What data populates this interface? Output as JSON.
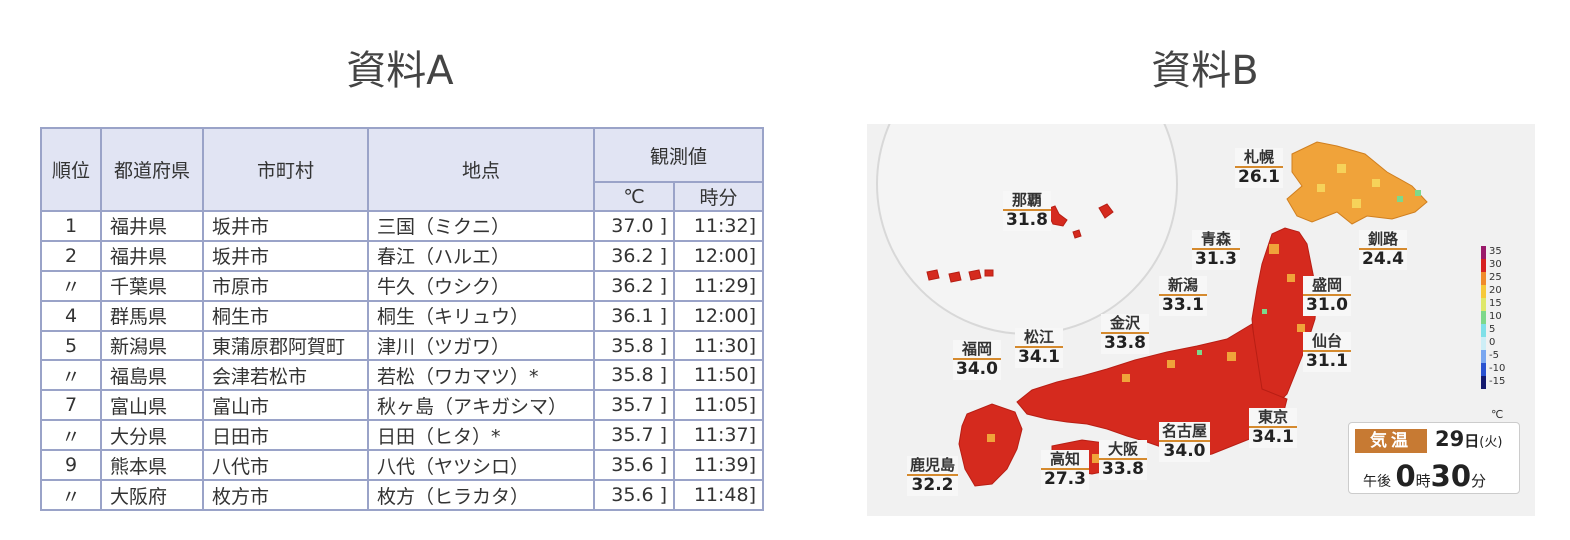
{
  "headings": {
    "a": "資料A",
    "b": "資料B"
  },
  "table": {
    "headers": {
      "rank": "順位",
      "pref": "都道府県",
      "city": "市町村",
      "site": "地点",
      "obs": "観測値",
      "unit_c": "℃",
      "unit_time": "時分"
    },
    "rows": [
      {
        "rank": "1",
        "pref": "福井県",
        "city": "坂井市",
        "site": "三国（ミクニ）",
        "temp": "37.0 ]",
        "time": "11:32]"
      },
      {
        "rank": "2",
        "pref": "福井県",
        "city": "坂井市",
        "site": "春江（ハルエ）",
        "temp": "36.2 ]",
        "time": "12:00]"
      },
      {
        "rank": "〃",
        "pref": "千葉県",
        "city": "市原市",
        "site": "牛久（ウシク）",
        "temp": "36.2 ]",
        "time": "11:29]"
      },
      {
        "rank": "4",
        "pref": "群馬県",
        "city": "桐生市",
        "site": "桐生（キリュウ）",
        "temp": "36.1 ]",
        "time": "12:00]"
      },
      {
        "rank": "5",
        "pref": "新潟県",
        "city": "東蒲原郡阿賀町",
        "site": "津川（ツガワ）",
        "temp": "35.8 ]",
        "time": "11:30]"
      },
      {
        "rank": "〃",
        "pref": "福島県",
        "city": "会津若松市",
        "site": "若松（ワカマツ）*",
        "temp": "35.8 ]",
        "time": "11:50]"
      },
      {
        "rank": "7",
        "pref": "富山県",
        "city": "富山市",
        "site": "秋ヶ島（アキガシマ）",
        "temp": "35.7 ]",
        "time": "11:05]"
      },
      {
        "rank": "〃",
        "pref": "大分県",
        "city": "日田市",
        "site": "日田（ヒタ）*",
        "temp": "35.7 ]",
        "time": "11:37]"
      },
      {
        "rank": "9",
        "pref": "熊本県",
        "city": "八代市",
        "site": "八代（ヤツシロ）",
        "temp": "35.6 ]",
        "time": "11:39]"
      },
      {
        "rank": "〃",
        "pref": "大阪府",
        "city": "枚方市",
        "site": "枚方（ヒラカタ）",
        "temp": "35.6 ]",
        "time": "11:48]"
      }
    ]
  },
  "map": {
    "cities": [
      {
        "id": "sapporo",
        "name": "札幌",
        "temp": "26.1"
      },
      {
        "id": "naha",
        "name": "那覇",
        "temp": "31.8"
      },
      {
        "id": "aomori",
        "name": "青森",
        "temp": "31.3"
      },
      {
        "id": "kushiro",
        "name": "釧路",
        "temp": "24.4"
      },
      {
        "id": "niigata",
        "name": "新潟",
        "temp": "33.1"
      },
      {
        "id": "morioka",
        "name": "盛岡",
        "temp": "31.0"
      },
      {
        "id": "kanazawa",
        "name": "金沢",
        "temp": "33.8"
      },
      {
        "id": "matsue",
        "name": "松江",
        "temp": "34.1"
      },
      {
        "id": "fukuoka",
        "name": "福岡",
        "temp": "34.0"
      },
      {
        "id": "sendai",
        "name": "仙台",
        "temp": "31.1"
      },
      {
        "id": "tokyo",
        "name": "東京",
        "temp": "34.1"
      },
      {
        "id": "nagoya",
        "name": "名古屋",
        "temp": "34.0"
      },
      {
        "id": "osaka",
        "name": "大阪",
        "temp": "33.8"
      },
      {
        "id": "kochi",
        "name": "高知",
        "temp": "27.3"
      },
      {
        "id": "kagoshima",
        "name": "鹿児島",
        "temp": "32.2"
      }
    ],
    "legend": {
      "values": [
        "35",
        "30",
        "25",
        "20",
        "15",
        "10",
        "5",
        "0",
        "-5",
        "-10",
        "-15"
      ],
      "colors": [
        "#9a1a6a",
        "#d62020",
        "#f08a2a",
        "#f6c93a",
        "#dfe86a",
        "#7ed88a",
        "#7fe0e8",
        "#cdeef6",
        "#7aa7f0",
        "#2a52d0",
        "#141a6e"
      ],
      "unit": "℃"
    },
    "timebox": {
      "label": "気温",
      "date": "29",
      "date_unit": "日",
      "weekday": "(火)",
      "ampm": "午後",
      "hour": "0",
      "hour_unit": "時",
      "minute": "30",
      "minute_unit": "分"
    }
  }
}
